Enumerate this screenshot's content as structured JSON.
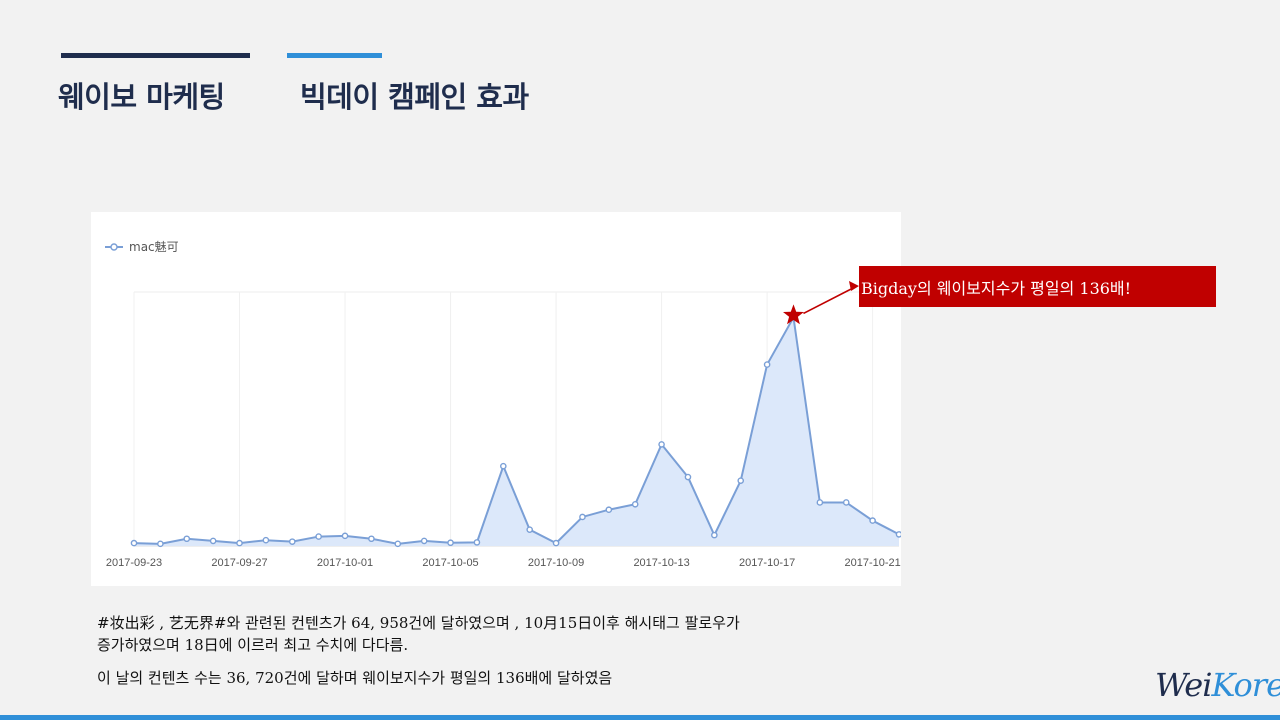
{
  "header": {
    "left_title": "웨이보 마케팅",
    "right_title": "빅데이 캠페인 효과"
  },
  "callout": {
    "text": "Bigday의 웨이보지수가 평일의 136배!"
  },
  "body": {
    "line1": "#妆出彩 , 艺无界#와 관련된 컨텐츠가 64, 958건에 달하였으며 , 10月15日이후 해시태그 팔로우가",
    "line2": "증가하였으며 18日에 이르러 최고 수치에 다다름.",
    "line3": "이 날의 컨텐츠 수는 36, 720건에 달하며 웨이보지수가 평일의 136배에 달하였음"
  },
  "logo": {
    "part1": "Wei",
    "part2": "Korea"
  },
  "colors": {
    "navy": "#1f2d4d",
    "blue": "#2f8fd8",
    "series": "#7a9fd6",
    "fill": "#dce8fa",
    "callout_bg": "#c00000",
    "star": "#c00000"
  },
  "chart_data": {
    "type": "area",
    "title": "",
    "xlabel": "",
    "ylabel": "",
    "legend": "top-left",
    "grid": true,
    "series": [
      {
        "name": "mac魅可",
        "values": [
          0.8,
          0.6,
          2.0,
          1.4,
          0.8,
          1.6,
          1.2,
          2.6,
          2.8,
          2.0,
          0.6,
          1.4,
          0.9,
          1.0,
          22.0,
          4.5,
          0.8,
          8.0,
          10.0,
          11.5,
          28.0,
          19.0,
          3.0,
          18.0,
          50.0,
          63.0,
          12.0,
          12.0,
          7.0,
          3.2
        ]
      }
    ],
    "x": [
      "2017-09-23",
      "2017-09-24",
      "2017-09-25",
      "2017-09-26",
      "2017-09-27",
      "2017-09-28",
      "2017-09-29",
      "2017-09-30",
      "2017-10-01",
      "2017-10-02",
      "2017-10-03",
      "2017-10-04",
      "2017-10-05",
      "2017-10-06",
      "2017-10-07",
      "2017-10-08",
      "2017-10-09",
      "2017-10-10",
      "2017-10-11",
      "2017-10-12",
      "2017-10-13",
      "2017-10-14",
      "2017-10-15",
      "2017-10-16",
      "2017-10-17",
      "2017-10-18",
      "2017-10-19",
      "2017-10-20",
      "2017-10-21",
      "2017-10-22"
    ],
    "x_tick_labels": [
      "2017-09-23",
      "2017-09-27",
      "2017-10-01",
      "2017-10-05",
      "2017-10-09",
      "2017-10-13",
      "2017-10-17",
      "2017-10-21"
    ],
    "ylim": [
      0,
      70
    ],
    "peak_index": 25
  }
}
